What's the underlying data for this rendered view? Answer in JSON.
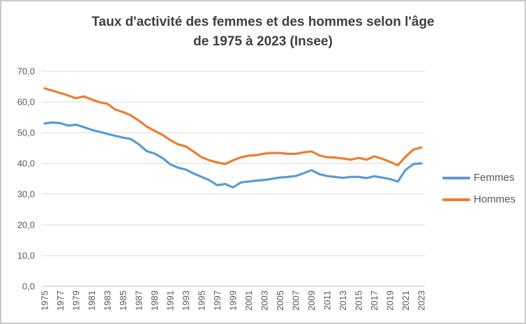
{
  "chart_data": {
    "type": "line",
    "title_line1": "Taux d'activité des femmes et des hommes selon l'âge",
    "title_line2": "de 1975 à 2023 (Insee)",
    "x": [
      1975,
      1976,
      1977,
      1978,
      1979,
      1980,
      1981,
      1982,
      1983,
      1984,
      1985,
      1986,
      1987,
      1988,
      1989,
      1990,
      1991,
      1992,
      1993,
      1994,
      1995,
      1996,
      1997,
      1998,
      1999,
      2000,
      2001,
      2002,
      2003,
      2004,
      2005,
      2006,
      2007,
      2008,
      2009,
      2010,
      2011,
      2012,
      2013,
      2014,
      2015,
      2016,
      2017,
      2018,
      2019,
      2020,
      2021,
      2022,
      2023
    ],
    "x_tick_labels": [
      "1975",
      "1977",
      "1979",
      "1981",
      "1983",
      "1985",
      "1987",
      "1989",
      "1991",
      "1993",
      "1995",
      "1997",
      "1999",
      "2001",
      "2003",
      "2005",
      "2007",
      "2009",
      "2011",
      "2013",
      "2015",
      "2017",
      "2019",
      "2021",
      "2023"
    ],
    "y_tick_labels": [
      "0,0",
      "10,0",
      "20,0",
      "30,0",
      "40,0",
      "50,0",
      "60,0",
      "70,0"
    ],
    "ylim": [
      0,
      70
    ],
    "grid": true,
    "legend_position": "right",
    "series": [
      {
        "name": "Femmes",
        "color": "#5b9bd5",
        "values": [
          53.0,
          53.3,
          53.1,
          52.3,
          52.6,
          51.8,
          50.9,
          50.3,
          49.6,
          49.0,
          48.4,
          47.9,
          46.2,
          44.0,
          43.2,
          41.8,
          39.7,
          38.6,
          38.0,
          36.7,
          35.6,
          34.5,
          32.9,
          33.3,
          32.2,
          33.8,
          34.1,
          34.4,
          34.6,
          35.0,
          35.4,
          35.6,
          35.9,
          36.8,
          37.8,
          36.5,
          35.9,
          35.6,
          35.3,
          35.6,
          35.6,
          35.2,
          35.8,
          35.4,
          34.9,
          34.1,
          37.9,
          39.8,
          40.0
        ]
      },
      {
        "name": "Hommes",
        "color": "#ed7d31",
        "values": [
          64.4,
          63.7,
          62.9,
          62.1,
          61.2,
          61.8,
          60.8,
          59.9,
          59.4,
          57.5,
          56.7,
          55.6,
          53.9,
          52.0,
          50.6,
          49.3,
          47.6,
          46.2,
          45.5,
          43.8,
          42.0,
          41.0,
          40.3,
          39.8,
          41.0,
          42.0,
          42.5,
          42.7,
          43.2,
          43.4,
          43.4,
          43.1,
          43.1,
          43.6,
          43.9,
          42.6,
          42.0,
          41.9,
          41.6,
          41.2,
          41.8,
          41.2,
          42.3,
          41.5,
          40.5,
          39.4,
          42.2,
          44.5,
          45.2
        ]
      }
    ],
    "colors": {
      "gridline": "#d9d9d9",
      "axis_line": "#bfbfbf",
      "tick_text": "#595959",
      "title_text": "#3f3f3f"
    }
  }
}
